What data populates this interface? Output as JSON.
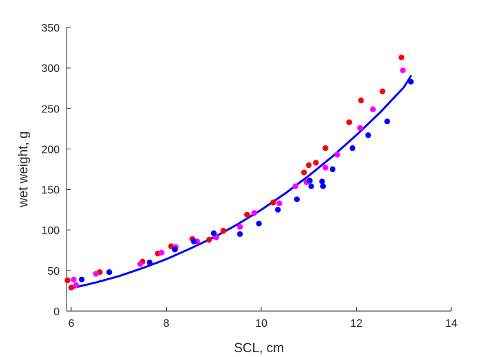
{
  "chart_data": {
    "type": "scatter",
    "title": "",
    "xlabel": "SCL, cm",
    "ylabel": "wet weight, g",
    "xlim": [
      5.9,
      14
    ],
    "ylim": [
      0,
      350
    ],
    "xticks": [
      6,
      8,
      10,
      12,
      14
    ],
    "yticks": [
      0,
      50,
      100,
      150,
      200,
      250,
      300,
      350
    ],
    "xtick_labels": [
      "6",
      "8",
      "10",
      "12",
      "14"
    ],
    "ytick_labels": [
      "0",
      "50",
      "100",
      "150",
      "200",
      "250",
      "300",
      "350"
    ],
    "grid": false,
    "legend": false,
    "series": [
      {
        "color": "#ff0000",
        "points": [
          [
            5.92,
            38
          ],
          [
            6.0,
            29
          ],
          [
            6.6,
            48
          ],
          [
            7.5,
            61
          ],
          [
            7.82,
            71
          ],
          [
            8.1,
            80
          ],
          [
            8.55,
            89
          ],
          [
            8.9,
            88
          ],
          [
            9.2,
            99
          ],
          [
            9.7,
            119
          ],
          [
            10.25,
            134
          ],
          [
            10.9,
            171
          ],
          [
            11.0,
            180
          ],
          [
            11.15,
            183
          ],
          [
            11.35,
            201
          ],
          [
            11.85,
            233
          ],
          [
            12.1,
            260
          ],
          [
            12.55,
            271
          ],
          [
            12.95,
            313
          ]
        ]
      },
      {
        "color": "#ff00ff",
        "points": [
          [
            6.05,
            39
          ],
          [
            6.1,
            32
          ],
          [
            6.52,
            46
          ],
          [
            7.45,
            58
          ],
          [
            7.9,
            72
          ],
          [
            8.2,
            79
          ],
          [
            8.65,
            86
          ],
          [
            9.05,
            91
          ],
          [
            9.55,
            104
          ],
          [
            9.85,
            121
          ],
          [
            10.38,
            133
          ],
          [
            10.72,
            154
          ],
          [
            10.95,
            159
          ],
          [
            11.35,
            177
          ],
          [
            11.6,
            193
          ],
          [
            12.08,
            226
          ],
          [
            12.35,
            249
          ],
          [
            12.98,
            297
          ]
        ]
      },
      {
        "color": "#0000ff",
        "points": [
          [
            6.22,
            39
          ],
          [
            6.8,
            48
          ],
          [
            7.65,
            60
          ],
          [
            8.18,
            76
          ],
          [
            8.58,
            86
          ],
          [
            9.0,
            96
          ],
          [
            9.55,
            95
          ],
          [
            9.95,
            108
          ],
          [
            10.35,
            125
          ],
          [
            10.75,
            138
          ],
          [
            11.02,
            161
          ],
          [
            11.05,
            154
          ],
          [
            11.28,
            160
          ],
          [
            11.3,
            154
          ],
          [
            11.5,
            175
          ],
          [
            11.92,
            201
          ],
          [
            12.25,
            217
          ],
          [
            12.65,
            234
          ],
          [
            13.15,
            283
          ]
        ]
      }
    ],
    "fit_line": {
      "color": "#0000ff",
      "points": [
        [
          5.98,
          28
        ],
        [
          6.5,
          35
        ],
        [
          7.0,
          43
        ],
        [
          7.5,
          53
        ],
        [
          8.0,
          64
        ],
        [
          8.5,
          77
        ],
        [
          9.0,
          91
        ],
        [
          9.5,
          107
        ],
        [
          10.0,
          125
        ],
        [
          10.5,
          145
        ],
        [
          11.0,
          167
        ],
        [
          11.5,
          191
        ],
        [
          12.0,
          217
        ],
        [
          12.5,
          245
        ],
        [
          13.0,
          276
        ],
        [
          13.15,
          290
        ]
      ]
    }
  }
}
